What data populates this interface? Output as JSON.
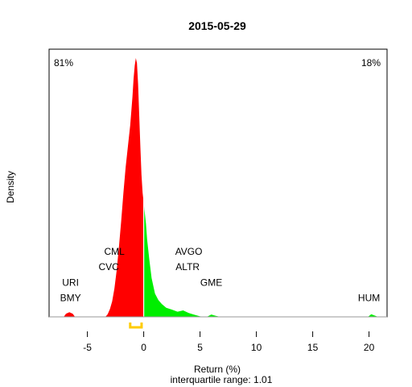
{
  "chart_data": {
    "type": "area",
    "title": "2015-05-29",
    "xlabel": "Return (%)",
    "ylabel": "Density",
    "subtitle": "interquartile range: 1.01",
    "xlim": [
      -8.4,
      21.6
    ],
    "ylim": [
      0,
      1.0
    ],
    "x_ticks": [
      -5,
      0,
      5,
      10,
      15,
      20
    ],
    "x_tick_labels": [
      "-5",
      "0",
      "5",
      "10",
      "15",
      "20"
    ],
    "grid": false,
    "split_at": 0,
    "negative_share_label": "81%",
    "positive_share_label": "18%",
    "negative_color": "#ff0000",
    "positive_color": "#00ee00",
    "iqr_color": "#ffcc00",
    "iqr_range": [
      -1.2,
      -0.19
    ],
    "density": {
      "x": [
        -7.1,
        -6.9,
        -6.6,
        -6.3,
        -6.1,
        -3.4,
        -3.2,
        -3.0,
        -2.8,
        -2.6,
        -2.4,
        -2.2,
        -2.0,
        -1.8,
        -1.6,
        -1.4,
        -1.2,
        -1.0,
        -0.9,
        -0.8,
        -0.7,
        -0.6,
        -0.5,
        -0.4,
        -0.3,
        -0.2,
        -0.1,
        0.0,
        0.1,
        0.2,
        0.3,
        0.5,
        0.7,
        1.0,
        1.3,
        1.6,
        2.0,
        2.5,
        3.0,
        3.5,
        4.0,
        4.5,
        5.0,
        5.6,
        6.0,
        6.4,
        6.8,
        19.9,
        20.2,
        20.5,
        20.8
      ],
      "y": [
        0,
        0.012,
        0.018,
        0.012,
        0,
        0,
        0.01,
        0.03,
        0.06,
        0.11,
        0.18,
        0.27,
        0.37,
        0.48,
        0.58,
        0.66,
        0.74,
        0.85,
        0.92,
        0.97,
        1.0,
        0.98,
        0.9,
        0.78,
        0.66,
        0.55,
        0.48,
        0.44,
        0.4,
        0.36,
        0.3,
        0.22,
        0.15,
        0.09,
        0.065,
        0.05,
        0.035,
        0.028,
        0.02,
        0.025,
        0.015,
        0.008,
        0.002,
        0,
        0.009,
        0.004,
        0,
        0,
        0.01,
        0.005,
        0
      ]
    },
    "annotations": [
      {
        "label": "URI",
        "x": -6.5,
        "y": 0.12
      },
      {
        "label": "BMY",
        "x": -6.5,
        "y": 0.06
      },
      {
        "label": "CML",
        "x": -2.6,
        "y": 0.24
      },
      {
        "label": "CVC",
        "x": -3.1,
        "y": 0.18
      },
      {
        "label": "AVGO",
        "x": 4.0,
        "y": 0.24
      },
      {
        "label": "ALTR",
        "x": 3.9,
        "y": 0.18
      },
      {
        "label": "GME",
        "x": 6.0,
        "y": 0.12
      },
      {
        "label": "HUM",
        "x": 20.0,
        "y": 0.06
      }
    ]
  }
}
